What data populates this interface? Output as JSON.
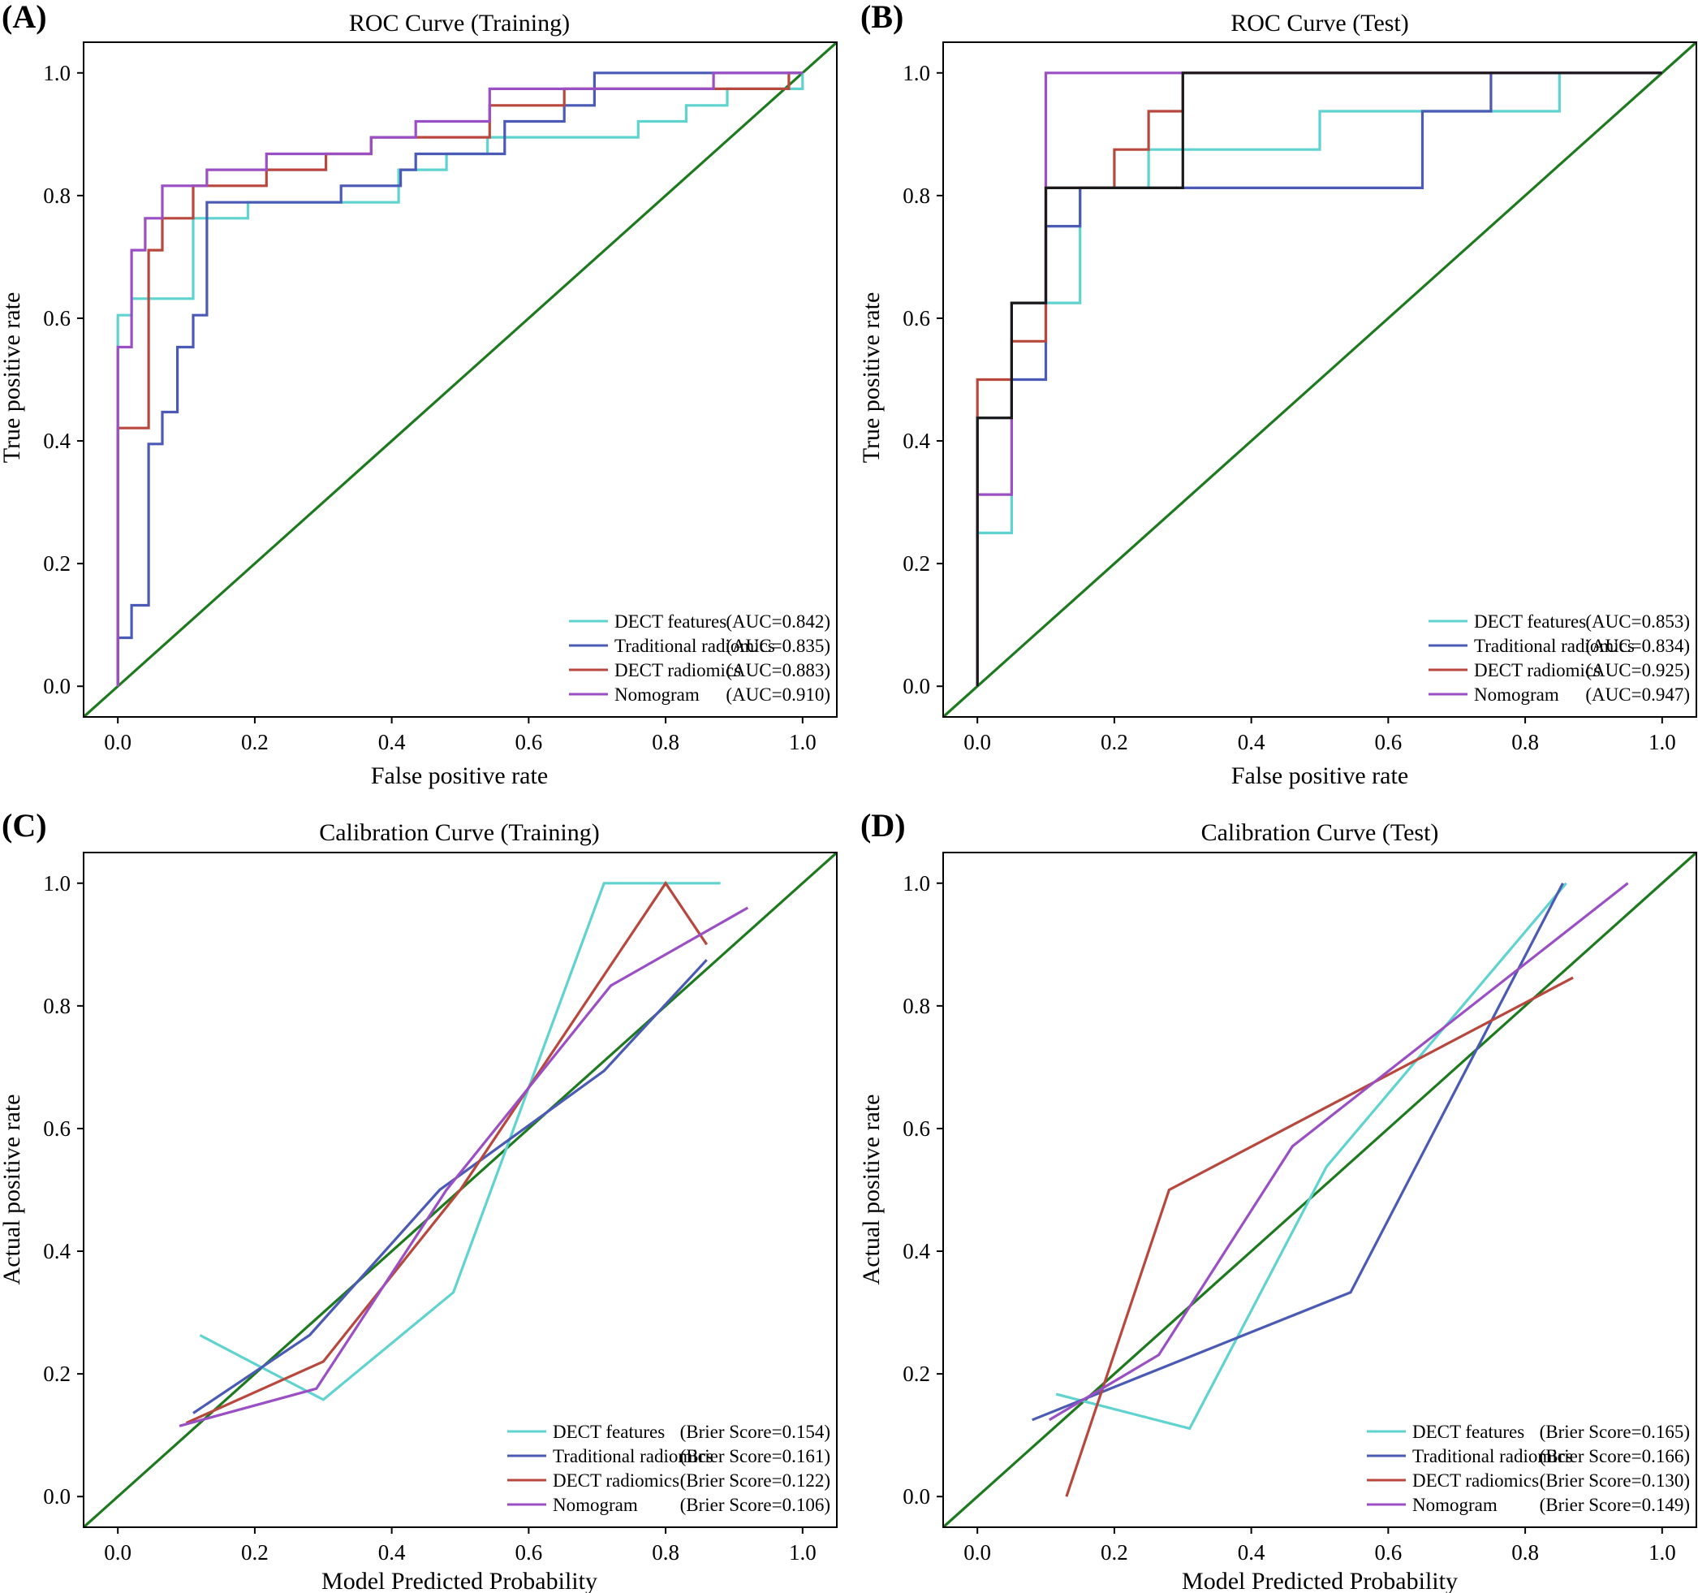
{
  "figure": {
    "panels": [
      {
        "letter": "(A)",
        "title": "ROC Curve (Training)",
        "xlabel": "False positive rate",
        "ylabel": "True positive rate",
        "metric_prefix": "AUC",
        "colors": {
          "diagonal": "#1e7a1e"
        }
      },
      {
        "letter": "(B)",
        "title": "ROC Curve (Test)",
        "xlabel": "False positive rate",
        "ylabel": "True positive rate",
        "metric_prefix": "AUC",
        "colors": {
          "diagonal": "#1e7a1e"
        }
      },
      {
        "letter": "(C)",
        "title": "Calibration Curve (Training)",
        "xlabel": "Model Predicted Probability",
        "ylabel": "Actual positive rate",
        "metric_prefix": "Brier Score",
        "colors": {
          "diagonal": "#1e7a1e"
        }
      },
      {
        "letter": "(D)",
        "title": "Calibration Curve (Test)",
        "xlabel": "Model Predicted Probability",
        "ylabel": "Actual positive rate",
        "metric_prefix": "Brier Score",
        "colors": {
          "diagonal": "#1e7a1e"
        }
      }
    ]
  },
  "chart_data": [
    {
      "type": "line",
      "panel": "(A)",
      "title": "ROC Curve (Training)",
      "xlabel": "False positive rate",
      "ylabel": "True positive rate",
      "xlim": [
        -0.05,
        1.05
      ],
      "ylim": [
        -0.05,
        1.05
      ],
      "xticks": [
        "0.0",
        "0.2",
        "0.4",
        "0.6",
        "0.8",
        "1.0"
      ],
      "yticks": [
        "0.0",
        "0.2",
        "0.4",
        "0.6",
        "0.8",
        "1.0"
      ],
      "legend_position": "bottom-right",
      "reference_line": {
        "name": "diagonal",
        "x": [
          -0.05,
          1.05
        ],
        "y": [
          -0.05,
          1.05
        ],
        "color": "#1e7a1e"
      },
      "series": [
        {
          "name": "DECT features",
          "metric": "(AUC=0.842)",
          "color": "#5fd3cf",
          "x": [
            0,
            0,
            0.02,
            0.02,
            0.11,
            0.11,
            0.19,
            0.19,
            0.41,
            0.41,
            0.48,
            0.48,
            0.54,
            0.54,
            0.76,
            0.76,
            0.83,
            0.83,
            0.89,
            0.89,
            1.0,
            1.0
          ],
          "y": [
            0,
            0.605,
            0.605,
            0.632,
            0.632,
            0.763,
            0.763,
            0.789,
            0.789,
            0.842,
            0.842,
            0.868,
            0.868,
            0.895,
            0.895,
            0.921,
            0.921,
            0.947,
            0.947,
            0.974,
            0.974,
            1.0
          ]
        },
        {
          "name": "Traditional radiomics",
          "metric": "(AUC=0.835)",
          "color": "#4a5ab5",
          "x": [
            0,
            0,
            0.02,
            0.02,
            0.045,
            0.045,
            0.065,
            0.065,
            0.087,
            0.087,
            0.11,
            0.11,
            0.13,
            0.13,
            0.326,
            0.326,
            0.413,
            0.413,
            0.435,
            0.435,
            0.565,
            0.565,
            0.652,
            0.652,
            0.696,
            0.696,
            1.0
          ],
          "y": [
            0,
            0.079,
            0.079,
            0.132,
            0.132,
            0.395,
            0.395,
            0.447,
            0.447,
            0.553,
            0.553,
            0.605,
            0.605,
            0.789,
            0.789,
            0.816,
            0.816,
            0.842,
            0.842,
            0.868,
            0.868,
            0.921,
            0.921,
            0.947,
            0.947,
            1.0,
            1.0
          ]
        },
        {
          "name": "DECT radiomics",
          "metric": "(AUC=0.883)",
          "color": "#b8483e",
          "x": [
            0,
            0,
            0.045,
            0.045,
            0.065,
            0.065,
            0.11,
            0.11,
            0.217,
            0.217,
            0.304,
            0.304,
            0.37,
            0.37,
            0.543,
            0.543,
            0.652,
            0.652,
            0.98,
            0.98,
            1.0
          ],
          "y": [
            0,
            0.421,
            0.421,
            0.711,
            0.711,
            0.763,
            0.763,
            0.816,
            0.816,
            0.842,
            0.842,
            0.868,
            0.868,
            0.895,
            0.895,
            0.947,
            0.947,
            0.974,
            0.974,
            1.0,
            1.0
          ]
        },
        {
          "name": "Nomogram",
          "metric": "(AUC=0.910)",
          "color": "#9a4fc4",
          "x": [
            0,
            0,
            0.02,
            0.02,
            0.04,
            0.04,
            0.065,
            0.065,
            0.13,
            0.13,
            0.217,
            0.217,
            0.37,
            0.37,
            0.435,
            0.435,
            0.543,
            0.543,
            0.87,
            0.87,
            1.0
          ],
          "y": [
            0,
            0.553,
            0.553,
            0.711,
            0.711,
            0.763,
            0.763,
            0.816,
            0.816,
            0.842,
            0.842,
            0.868,
            0.868,
            0.895,
            0.895,
            0.921,
            0.921,
            0.974,
            0.974,
            1.0,
            1.0
          ]
        }
      ]
    },
    {
      "type": "line",
      "panel": "(B)",
      "title": "ROC Curve (Test)",
      "xlabel": "False positive rate",
      "ylabel": "True positive rate",
      "xlim": [
        -0.05,
        1.05
      ],
      "ylim": [
        -0.05,
        1.05
      ],
      "xticks": [
        "0.0",
        "0.2",
        "0.4",
        "0.6",
        "0.8",
        "1.0"
      ],
      "yticks": [
        "0.0",
        "0.2",
        "0.4",
        "0.6",
        "0.8",
        "1.0"
      ],
      "legend_position": "bottom-right",
      "reference_line": {
        "name": "diagonal",
        "x": [
          -0.05,
          1.05
        ],
        "y": [
          -0.05,
          1.05
        ],
        "color": "#1e7a1e"
      },
      "series": [
        {
          "name": "DECT features",
          "metric": "(AUC=0.853)",
          "color": "#5fd3cf",
          "x": [
            0,
            0,
            0.05,
            0.05,
            0.1,
            0.1,
            0.15,
            0.15,
            0.25,
            0.25,
            0.5,
            0.5,
            0.85,
            0.85,
            1.0
          ],
          "y": [
            0,
            0.25,
            0.25,
            0.625,
            0.625,
            0.625,
            0.625,
            0.8125,
            0.8125,
            0.875,
            0.875,
            0.9375,
            0.9375,
            1.0,
            1.0
          ]
        },
        {
          "name": "Traditional radiomics",
          "metric": "(AUC=0.834)",
          "color": "#4a5ab5",
          "x": [
            0,
            0,
            0.05,
            0.05,
            0.1,
            0.1,
            0.15,
            0.15,
            0.65,
            0.65,
            0.75,
            0.75,
            1.0
          ],
          "y": [
            0,
            0.4375,
            0.4375,
            0.5,
            0.5,
            0.75,
            0.75,
            0.8125,
            0.8125,
            0.9375,
            0.9375,
            1.0,
            1.0
          ]
        },
        {
          "name": "DECT radiomics",
          "metric": "(AUC=0.925)",
          "color": "#b8483e",
          "x": [
            0,
            0,
            0.05,
            0.05,
            0.1,
            0.1,
            0.2,
            0.2,
            0.25,
            0.25,
            0.3,
            0.3,
            1.0
          ],
          "y": [
            0,
            0.5,
            0.5,
            0.5625,
            0.5625,
            0.8125,
            0.8125,
            0.875,
            0.875,
            0.9375,
            0.9375,
            1.0,
            1.0
          ]
        },
        {
          "name": "Nomogram",
          "metric": "(AUC=0.947)",
          "color": "#9a4fc4",
          "x": [
            0,
            0,
            0.05,
            0.05,
            0.1,
            0.1,
            1.0
          ],
          "y": [
            0,
            0.3125,
            0.3125,
            0.625,
            0.625,
            1.0,
            1.0
          ]
        },
        {
          "name": "overlap",
          "metric": "",
          "color": "#1a1a1a",
          "legend": false,
          "x": [
            0,
            0,
            0.05,
            0.05,
            0.1,
            0.1,
            0.15,
            0.15,
            0.25,
            0.25,
            0.3,
            0.3,
            1.0
          ],
          "y": [
            0,
            0.4375,
            0.4375,
            0.625,
            0.625,
            0.8125,
            0.8125,
            0.8125,
            0.8125,
            0.8125,
            0.8125,
            1.0,
            1.0
          ]
        }
      ]
    },
    {
      "type": "line",
      "panel": "(C)",
      "title": "Calibration Curve (Training)",
      "xlabel": "Model Predicted Probability",
      "ylabel": "Actual positive rate",
      "xlim": [
        -0.05,
        1.05
      ],
      "ylim": [
        -0.05,
        1.05
      ],
      "xticks": [
        "0.0",
        "0.2",
        "0.4",
        "0.6",
        "0.8",
        "1.0"
      ],
      "yticks": [
        "0.0",
        "0.2",
        "0.4",
        "0.6",
        "0.8",
        "1.0"
      ],
      "legend_position": "bottom-right",
      "reference_line": {
        "name": "diagonal",
        "x": [
          -0.05,
          1.05
        ],
        "y": [
          -0.05,
          1.05
        ],
        "color": "#1e7a1e"
      },
      "series": [
        {
          "name": "DECT features",
          "metric": "(Brier Score=0.154)",
          "color": "#5fd3cf",
          "x": [
            0.12,
            0.3,
            0.49,
            0.71,
            0.88
          ],
          "y": [
            0.263,
            0.158,
            0.333,
            1.0,
            1.0
          ]
        },
        {
          "name": "Traditional radiomics",
          "metric": "(Brier Score=0.161)",
          "color": "#4a5ab5",
          "x": [
            0.11,
            0.28,
            0.47,
            0.71,
            0.86
          ],
          "y": [
            0.136,
            0.263,
            0.5,
            0.694,
            0.875
          ]
        },
        {
          "name": "DECT radiomics",
          "metric": "(Brier Score=0.122)",
          "color": "#b8483e",
          "x": [
            0.1,
            0.3,
            0.5,
            0.8,
            0.86
          ],
          "y": [
            0.12,
            0.22,
            0.5,
            1.0,
            0.9
          ]
        },
        {
          "name": "Nomogram",
          "metric": "(Brier Score=0.106)",
          "color": "#9a4fc4",
          "x": [
            0.09,
            0.29,
            0.48,
            0.72,
            0.92
          ],
          "y": [
            0.115,
            0.176,
            0.5,
            0.833,
            0.96
          ]
        }
      ]
    },
    {
      "type": "line",
      "panel": "(D)",
      "title": "Calibration Curve (Test)",
      "xlabel": "Model Predicted Probability",
      "ylabel": "Actual positive rate",
      "xlim": [
        -0.05,
        1.05
      ],
      "ylim": [
        -0.05,
        1.05
      ],
      "xticks": [
        "0.0",
        "0.2",
        "0.4",
        "0.6",
        "0.8",
        "1.0"
      ],
      "yticks": [
        "0.0",
        "0.2",
        "0.4",
        "0.6",
        "0.8",
        "1.0"
      ],
      "legend_position": "bottom-right",
      "reference_line": {
        "name": "diagonal",
        "x": [
          -0.05,
          1.05
        ],
        "y": [
          -0.05,
          1.05
        ],
        "color": "#1e7a1e"
      },
      "series": [
        {
          "name": "DECT features",
          "metric": "(Brier Score=0.165)",
          "color": "#5fd3cf",
          "x": [
            0.115,
            0.31,
            0.51,
            0.86
          ],
          "y": [
            0.167,
            0.111,
            0.538,
            1.0
          ]
        },
        {
          "name": "Traditional radiomics",
          "metric": "(Brier Score=0.166)",
          "color": "#4a5ab5",
          "x": [
            0.08,
            0.545,
            0.855
          ],
          "y": [
            0.125,
            0.333,
            1.0
          ]
        },
        {
          "name": "DECT radiomics",
          "metric": "(Brier Score=0.130)",
          "color": "#b8483e",
          "x": [
            0.13,
            0.28,
            0.87
          ],
          "y": [
            0.0,
            0.5,
            0.846
          ]
        },
        {
          "name": "Nomogram",
          "metric": "(Brier Score=0.149)",
          "color": "#9a4fc4",
          "x": [
            0.105,
            0.265,
            0.46,
            0.95
          ],
          "y": [
            0.125,
            0.231,
            0.571,
            1.0
          ]
        }
      ]
    }
  ]
}
